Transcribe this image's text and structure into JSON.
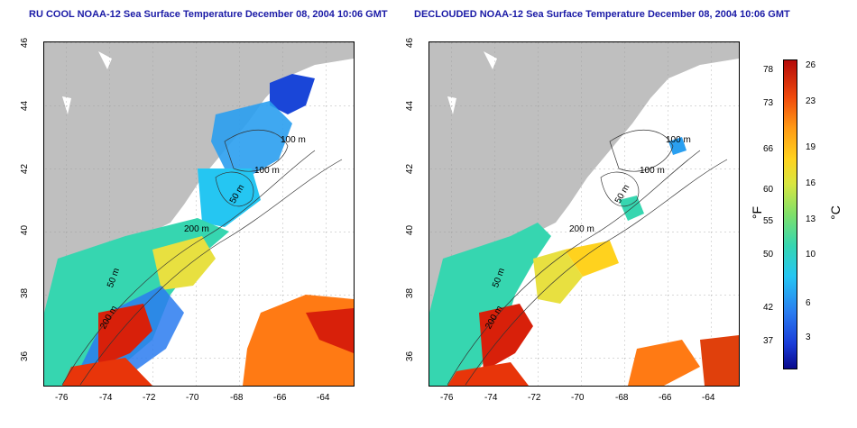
{
  "titles": {
    "left": "RU COOL NOAA-12 Sea Surface Temperature December 08, 2004 10:06 GMT",
    "right": "DECLOUDED NOAA-12 Sea Surface Temperature December 08, 2004 10:06 GMT"
  },
  "axes": {
    "lat_labels": [
      "46",
      "44",
      "42",
      "40",
      "38",
      "36"
    ],
    "lon_labels": [
      "-76",
      "-74",
      "-72",
      "-70",
      "-68",
      "-66",
      "-64"
    ]
  },
  "contour_labels": [
    "100 m",
    "100 m",
    "50 m",
    "200 m",
    "50 m",
    "200 m"
  ],
  "colorbar": {
    "fahrenheit_unit": "°F",
    "celsius_unit": "°C",
    "fahrenheit_ticks": [
      "78",
      "73",
      "66",
      "60",
      "55",
      "50",
      "42",
      "37"
    ],
    "celsius_ticks": [
      "26",
      "23",
      "19",
      "16",
      "13",
      "10",
      "6",
      "3"
    ]
  },
  "colors": {
    "land": "#bfbfbf",
    "title": "#1a1aa6",
    "warm": "#d8200a",
    "cool": "#1a46d8"
  }
}
